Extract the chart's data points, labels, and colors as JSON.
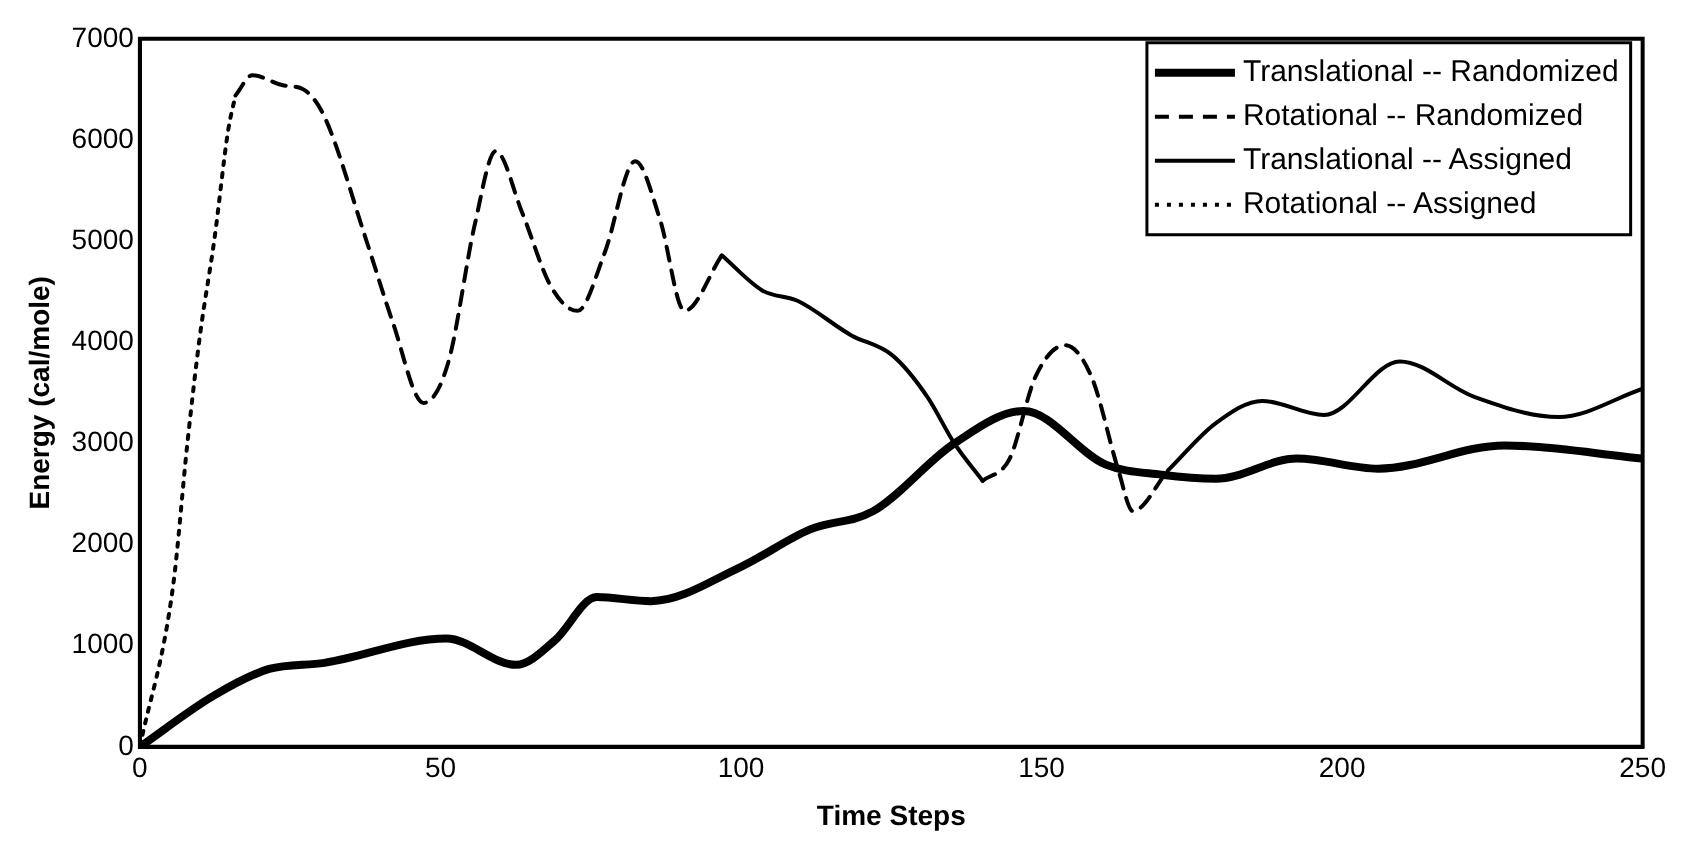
{
  "chart_data": {
    "type": "line",
    "xlabel": "Time Steps",
    "ylabel": "Energy (cal/mole)",
    "xlim": [
      0,
      250
    ],
    "xticks": [
      0,
      50,
      100,
      150,
      200,
      250
    ],
    "ylim": [
      0,
      7000
    ],
    "yticks": [
      0,
      1000,
      2000,
      3000,
      4000,
      5000,
      6000,
      7000
    ],
    "grid": false,
    "legend": "top right",
    "marker": "none",
    "series": [
      {
        "name": "Translational -- Randomized",
        "color": "#000000",
        "line_style": "solid",
        "x": [
          0,
          12.3,
          21.5,
          30.7,
          51,
          62.6,
          69,
          76,
          85,
          100,
          111.5,
          122,
          135.5,
          147,
          160.7,
          170,
          179,
          192.5,
          206,
          227,
          250
        ],
        "values": [
          0,
          506,
          770,
          830,
          1070,
          810,
          1050,
          1480,
          1440,
          1780,
          2150,
          2330,
          3000,
          3320,
          2790,
          2690,
          2650,
          2850,
          2750,
          2980,
          2850
        ]
      },
      {
        "name": "Rotational -- Randomized",
        "color": "#000000",
        "line_style": "dashed",
        "x": [
          15.9,
          18.7,
          23.8,
          27.2,
          30.7,
          37.6,
          42,
          47.2,
          51.3,
          55.7,
          59.2,
          63.6,
          68.4,
          72.8,
          77.3,
          82.4,
          86.5,
          90.6,
          96.8,
          null,
          140.2,
          144.7,
          149,
          153.9,
          158.3,
          162.8,
          165.2,
          171
        ],
        "values": [
          6440,
          6640,
          6540,
          6500,
          6230,
          5020,
          4210,
          3400,
          3800,
          5160,
          5890,
          5280,
          4550,
          4310,
          4880,
          5790,
          5220,
          4310,
          4860,
          null,
          2630,
          2850,
          3660,
          3970,
          3660,
          2730,
          2330,
          2730
        ]
      },
      {
        "name": "Translational -- Assigned",
        "color": "#000000",
        "line_style": "solid",
        "x": [
          96.8,
          103.6,
          109.4,
          118.3,
          125.2,
          131,
          135.5,
          140.2,
          null,
          171,
          179,
          186.7,
          197,
          209.6,
          222,
          236,
          250
        ],
        "values": [
          4860,
          4510,
          4410,
          4070,
          3870,
          3460,
          3000,
          2630,
          null,
          2730,
          3200,
          3420,
          3280,
          3810,
          3460,
          3260,
          3540
        ]
      },
      {
        "name": "Rotational -- Assigned",
        "color": "#000000",
        "line_style": "dotted",
        "x": [
          0,
          5.5,
          7.9,
          10,
          12.4,
          14.7,
          15.9
        ],
        "values": [
          0,
          1580,
          3000,
          4070,
          5020,
          6100,
          6440
        ]
      }
    ]
  }
}
